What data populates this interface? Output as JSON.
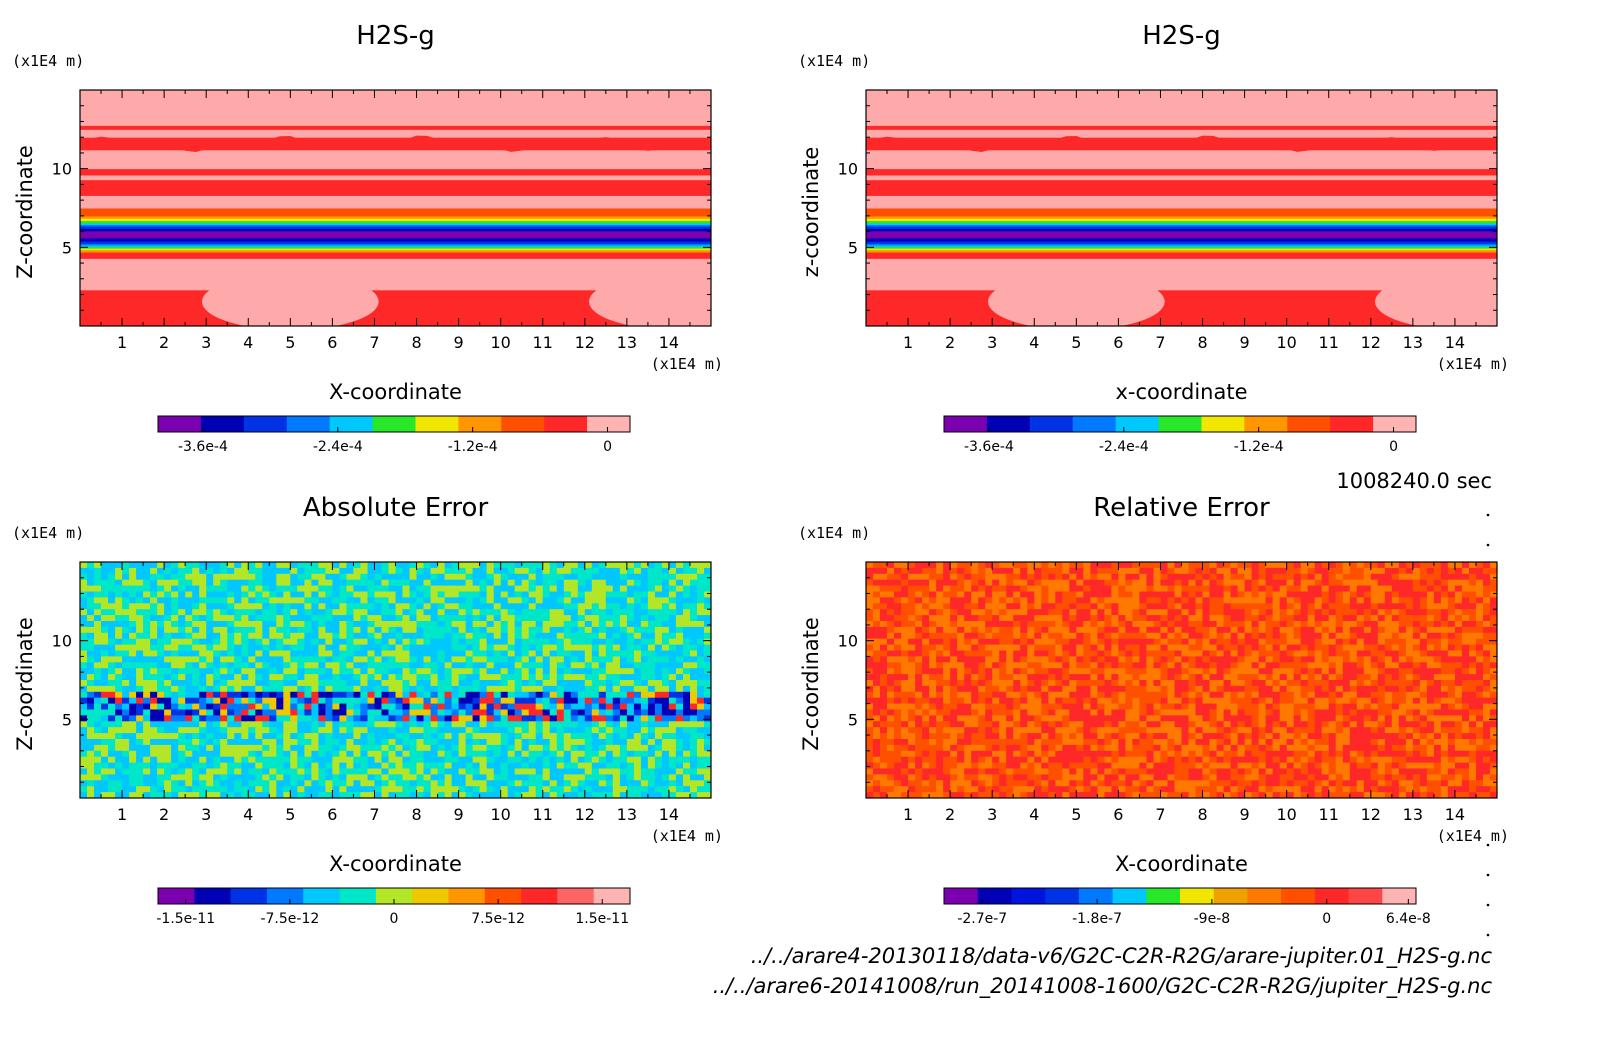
{
  "time_stamp": "1008240.0 sec",
  "footer": [
    "../../arare4-20130118/data-v6/G2C-C2R-R2G/arare-jupiter.01_H2S-g.nc",
    "../../arare6-20141008/run_20141008-1600/G2C-C2R-R2G/jupiter_H2S-g.nc"
  ],
  "chart_data": [
    {
      "type": "heatmap",
      "title": "H2S-g",
      "xlabel": "X-coordinate",
      "ylabel": "Z-coordinate",
      "x_unit": "(x1E4 m)",
      "y_unit": "(x1E4 m)",
      "xlim": [
        0,
        15
      ],
      "ylim": [
        0,
        15
      ],
      "xticks": [
        1,
        2,
        3,
        4,
        5,
        6,
        7,
        8,
        9,
        10,
        11,
        12,
        13,
        14
      ],
      "yticks": [
        5,
        10
      ],
      "colorbar": {
        "range": [
          -0.0004,
          2e-05
        ],
        "colors": [
          "#7a00b0",
          "#0000b4",
          "#0032e6",
          "#0078ff",
          "#00c8ff",
          "#28e628",
          "#f0e600",
          "#ff9600",
          "#ff5000",
          "#ff2828",
          "#ffb4b4"
        ],
        "tick_values": [
          -0.00036,
          -0.00024,
          -0.00012,
          0
        ],
        "tick_labels": [
          "-3.6e-4",
          "-2.4e-4",
          "-1.2e-4",
          "0"
        ]
      },
      "field": "stratified",
      "bands": [
        [
          0,
          2.3,
          "#ff2828"
        ],
        [
          2.3,
          4.3,
          "#ffaaaa"
        ],
        [
          4.3,
          4.7,
          "#ff2828"
        ],
        [
          4.7,
          4.85,
          "#ff9600"
        ],
        [
          4.85,
          4.95,
          "#f0e600"
        ],
        [
          4.95,
          5.05,
          "#28e628"
        ],
        [
          5.05,
          5.15,
          "#00c8ff"
        ],
        [
          5.15,
          5.25,
          "#0078ff"
        ],
        [
          5.25,
          5.4,
          "#0032e6"
        ],
        [
          5.4,
          5.6,
          "#0000b4"
        ],
        [
          5.6,
          6.05,
          "#7a00b0"
        ],
        [
          6.05,
          6.2,
          "#0000b4"
        ],
        [
          6.2,
          6.35,
          "#0032e6"
        ],
        [
          6.35,
          6.45,
          "#0078ff"
        ],
        [
          6.45,
          6.55,
          "#00c8ff"
        ],
        [
          6.55,
          6.7,
          "#28e628"
        ],
        [
          6.7,
          6.85,
          "#f0e600"
        ],
        [
          6.85,
          7.0,
          "#ff9600"
        ],
        [
          7.0,
          7.5,
          "#ff5000"
        ],
        [
          7.5,
          8.3,
          "#ffaaaa"
        ],
        [
          8.3,
          9.3,
          "#ff2828"
        ],
        [
          9.3,
          9.6,
          "#ffaaaa"
        ],
        [
          9.6,
          10.0,
          "#ff2828"
        ],
        [
          10.0,
          11.2,
          "#ffaaaa"
        ],
        [
          11.2,
          12.0,
          "#ff2828"
        ],
        [
          12.0,
          12.5,
          "#ffaaaa"
        ],
        [
          12.5,
          12.75,
          "#ff2828"
        ],
        [
          12.75,
          15,
          "#ffaaaa"
        ]
      ]
    },
    {
      "type": "heatmap",
      "title": "H2S-g",
      "xlabel": "x-coordinate",
      "ylabel": "z-coordinate",
      "x_unit": "(x1E4 m)",
      "y_unit": "(x1E4 m)",
      "xlim": [
        0,
        15
      ],
      "ylim": [
        0,
        15
      ],
      "xticks": [
        1,
        2,
        3,
        4,
        5,
        6,
        7,
        8,
        9,
        10,
        11,
        12,
        13,
        14
      ],
      "yticks": [
        5,
        10
      ],
      "colorbar": {
        "range": [
          -0.0004,
          2e-05
        ],
        "colors": [
          "#7a00b0",
          "#0000b4",
          "#0032e6",
          "#0078ff",
          "#00c8ff",
          "#28e628",
          "#f0e600",
          "#ff9600",
          "#ff5000",
          "#ff2828",
          "#ffb4b4"
        ],
        "tick_values": [
          -0.00036,
          -0.00024,
          -0.00012,
          0
        ],
        "tick_labels": [
          "-3.6e-4",
          "-2.4e-4",
          "-1.2e-4",
          "0"
        ]
      },
      "field": "stratified",
      "bands": [
        [
          0,
          2.3,
          "#ff2828"
        ],
        [
          2.3,
          4.3,
          "#ffaaaa"
        ],
        [
          4.3,
          4.7,
          "#ff2828"
        ],
        [
          4.7,
          4.85,
          "#ff9600"
        ],
        [
          4.85,
          4.95,
          "#f0e600"
        ],
        [
          4.95,
          5.05,
          "#28e628"
        ],
        [
          5.05,
          5.15,
          "#00c8ff"
        ],
        [
          5.15,
          5.25,
          "#0078ff"
        ],
        [
          5.25,
          5.4,
          "#0032e6"
        ],
        [
          5.4,
          5.6,
          "#0000b4"
        ],
        [
          5.6,
          6.05,
          "#7a00b0"
        ],
        [
          6.05,
          6.2,
          "#0000b4"
        ],
        [
          6.2,
          6.35,
          "#0032e6"
        ],
        [
          6.35,
          6.45,
          "#0078ff"
        ],
        [
          6.45,
          6.55,
          "#00c8ff"
        ],
        [
          6.55,
          6.7,
          "#28e628"
        ],
        [
          6.7,
          6.85,
          "#f0e600"
        ],
        [
          6.85,
          7.0,
          "#ff9600"
        ],
        [
          7.0,
          7.5,
          "#ff5000"
        ],
        [
          7.5,
          8.3,
          "#ffaaaa"
        ],
        [
          8.3,
          9.3,
          "#ff2828"
        ],
        [
          9.3,
          9.6,
          "#ffaaaa"
        ],
        [
          9.6,
          10.0,
          "#ff2828"
        ],
        [
          10.0,
          11.2,
          "#ffaaaa"
        ],
        [
          11.2,
          12.0,
          "#ff2828"
        ],
        [
          12.0,
          12.5,
          "#ffaaaa"
        ],
        [
          12.5,
          12.75,
          "#ff2828"
        ],
        [
          12.75,
          15,
          "#ffaaaa"
        ]
      ]
    },
    {
      "type": "heatmap",
      "title": "Absolute Error",
      "xlabel": "X-coordinate",
      "ylabel": "Z-coordinate",
      "x_unit": "(x1E4 m)",
      "y_unit": "(x1E4 m)",
      "xlim": [
        0,
        15
      ],
      "ylim": [
        0,
        15
      ],
      "xticks": [
        1,
        2,
        3,
        4,
        5,
        6,
        7,
        8,
        9,
        10,
        11,
        12,
        13,
        14
      ],
      "yticks": [
        5,
        10
      ],
      "colorbar": {
        "range": [
          -1.7e-11,
          1.7e-11
        ],
        "colors": [
          "#7a00b0",
          "#0000b4",
          "#0032e6",
          "#0078ff",
          "#00c8ff",
          "#00e6c8",
          "#b4e628",
          "#f0c800",
          "#ff9600",
          "#ff5000",
          "#ff2828",
          "#ff6464",
          "#ffb4b4"
        ],
        "tick_values": [
          -1.5e-11,
          -7.5e-12,
          0,
          7.5e-12,
          1.5e-11
        ],
        "tick_labels": [
          "-1.5e-11",
          "-7.5e-12",
          "0",
          "7.5e-12",
          "1.5e-11"
        ]
      },
      "field": "noise",
      "noise_palette": [
        "#00e6c8",
        "#b4e628",
        "#00c8ff"
      ],
      "noise_band": {
        "range": [
          4.9,
          6.8
        ],
        "palette": [
          "#0000b4",
          "#0032e6",
          "#00c8ff",
          "#ff2828",
          "#f0c800",
          "#00e6c8",
          "#0078ff"
        ]
      }
    },
    {
      "type": "heatmap",
      "title": "Relative Error",
      "xlabel": "X-coordinate",
      "ylabel": "Z-coordinate",
      "x_unit": "(x1E4 m)",
      "y_unit": "(x1E4 m)",
      "xlim": [
        0,
        15
      ],
      "ylim": [
        0,
        15
      ],
      "xticks": [
        1,
        2,
        3,
        4,
        5,
        6,
        7,
        8,
        9,
        10,
        11,
        12,
        13,
        14
      ],
      "yticks": [
        5,
        10
      ],
      "colorbar": {
        "range": [
          -3e-07,
          7e-08
        ],
        "colors": [
          "#7a00b0",
          "#0000b4",
          "#0014dc",
          "#0032e6",
          "#0078ff",
          "#00c8ff",
          "#28e628",
          "#f0e600",
          "#f0a000",
          "#ff7800",
          "#ff5000",
          "#ff2828",
          "#ff4646",
          "#ffb4b4"
        ],
        "tick_values": [
          -2.7e-07,
          -1.8e-07,
          -9e-08,
          0,
          6.4e-08
        ],
        "tick_labels": [
          "-2.7e-7",
          "-1.8e-7",
          "-9e-8",
          "0",
          "6.4e-8"
        ]
      },
      "field": "noise",
      "noise_palette": [
        "#ff2828",
        "#ff5000",
        "#ff7800"
      ]
    }
  ]
}
